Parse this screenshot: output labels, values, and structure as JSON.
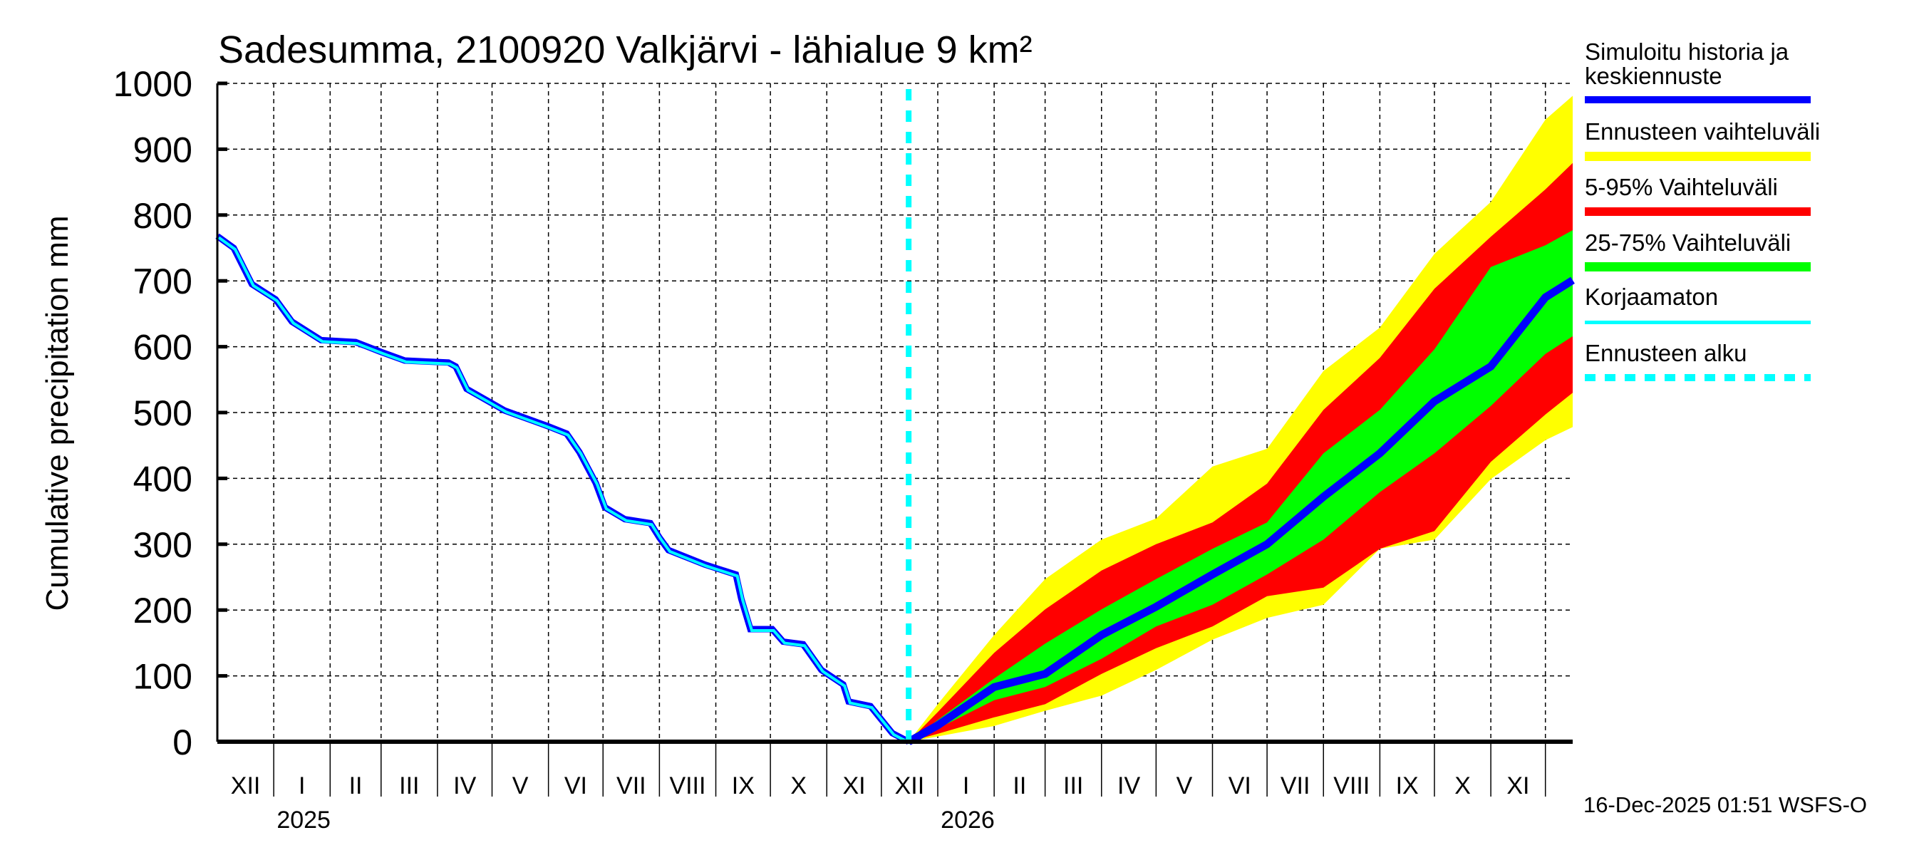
{
  "chart_data": {
    "type": "area",
    "title": "Sadesumma, 2100920 Valkjärvi - lähialue 9 km²",
    "ylabel": "Cumulative precipitation    mm",
    "xlabel": "",
    "ylim": [
      0,
      1000
    ],
    "xlim": [
      "2024-12-01",
      "2026-12-16"
    ],
    "yticks": [
      "0",
      "100",
      "200",
      "300",
      "400",
      "500",
      "600",
      "700",
      "800",
      "900",
      "1000"
    ],
    "grid": true,
    "legend_position": "right",
    "month_labels": [
      "XII",
      "I",
      "II",
      "III",
      "IV",
      "V",
      "VI",
      "VII",
      "VIII",
      "IX",
      "X",
      "XI",
      "XII",
      "I",
      "II",
      "III",
      "IV",
      "V",
      "VI",
      "VII",
      "VIII",
      "IX",
      "X",
      "XI"
    ],
    "year_labels": [
      {
        "year": "2025",
        "date": "2025-01-01"
      },
      {
        "year": "2026",
        "date": "2026-01-01"
      }
    ],
    "forecast_start": "2025-12-16",
    "colors": {
      "simulated": "#0000ff",
      "range_full": "#ffff00",
      "range_5_95": "#ff0000",
      "range_25_75": "#00ff00",
      "uncorrected": "#00ffff",
      "forecast_start": "#00ffff"
    },
    "history": {
      "x": [
        "2024-12-01",
        "2024-12-10",
        "2024-12-20",
        "2025-01-02",
        "2025-01-11",
        "2025-01-27",
        "2025-02-15",
        "2025-03-01",
        "2025-03-14",
        "2025-04-07",
        "2025-04-11",
        "2025-04-17",
        "2025-05-08",
        "2025-05-31",
        "2025-06-11",
        "2025-06-18",
        "2025-06-27",
        "2025-07-02",
        "2025-07-13",
        "2025-07-27",
        "2025-08-01",
        "2025-08-06",
        "2025-08-26",
        "2025-09-12",
        "2025-09-15",
        "2025-09-20",
        "2025-10-02",
        "2025-10-08",
        "2025-10-19",
        "2025-10-29",
        "2025-11-10",
        "2025-11-13",
        "2025-11-25",
        "2025-12-07",
        "2025-12-16"
      ],
      "y": [
        768,
        750,
        695,
        672,
        638,
        610,
        607,
        592,
        579,
        576,
        570,
        536,
        503,
        480,
        468,
        440,
        393,
        356,
        338,
        332,
        310,
        291,
        269,
        254,
        217,
        171,
        171,
        152,
        148,
        109,
        87,
        61,
        54,
        13,
        0
      ]
    },
    "forecast": {
      "x": [
        "2025-12-16",
        "2026-01-01",
        "2026-02-01",
        "2026-03-01",
        "2026-04-01",
        "2026-05-01",
        "2026-06-01",
        "2026-07-01",
        "2026-08-01",
        "2026-09-01",
        "2026-10-01",
        "2026-11-01",
        "2026-12-01",
        "2026-12-16"
      ],
      "median": [
        0,
        25,
        83,
        103,
        162,
        205,
        254,
        300,
        372,
        438,
        517,
        570,
        675,
        701
      ],
      "p25": [
        0,
        20,
        63,
        83,
        126,
        175,
        208,
        254,
        307,
        379,
        438,
        510,
        589,
        616
      ],
      "p75": [
        0,
        33,
        96,
        149,
        201,
        247,
        293,
        333,
        438,
        504,
        596,
        721,
        754,
        777
      ],
      "p5": [
        0,
        12,
        37,
        57,
        103,
        142,
        175,
        221,
        234,
        293,
        320,
        425,
        497,
        530
      ],
      "p95": [
        0,
        45,
        135,
        201,
        260,
        300,
        333,
        392,
        504,
        583,
        688,
        767,
        839,
        879
      ],
      "min": [
        0,
        8,
        24,
        47,
        70,
        109,
        155,
        188,
        208,
        293,
        307,
        399,
        458,
        478
      ],
      "max": [
        0,
        57,
        162,
        247,
        307,
        339,
        418,
        445,
        563,
        629,
        741,
        820,
        945,
        981
      ]
    }
  },
  "legend": {
    "simulated_line1": "Simuloitu historia ja",
    "simulated_line2": "keskiennuste",
    "range_full": "Ennusteen vaihteluväli",
    "range_5_95": "5-95% Vaihteluväli",
    "range_25_75": "25-75% Vaihteluväli",
    "uncorrected": "Korjaamaton",
    "forecast_start": "Ennusteen alku"
  },
  "timestamp": "16-Dec-2025 01:51 WSFS-O"
}
